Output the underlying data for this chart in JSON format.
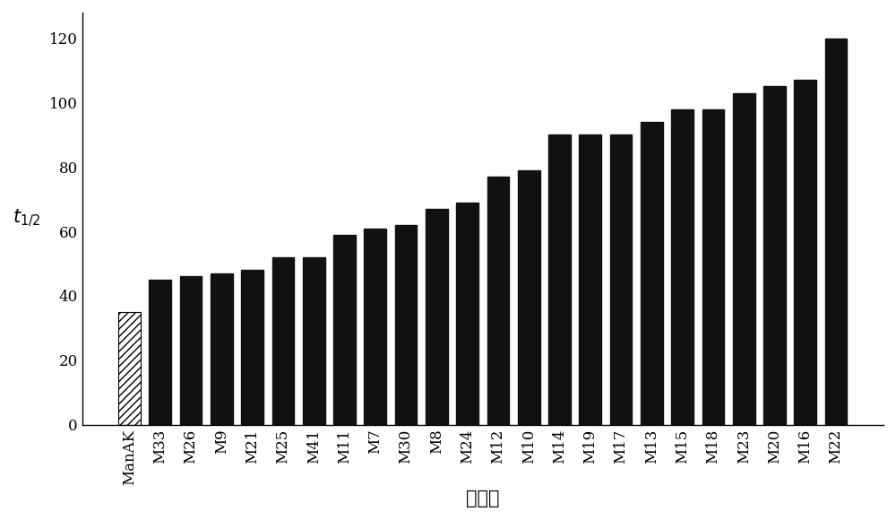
{
  "categories": [
    "ManAK",
    "M33",
    "M26",
    "M9",
    "M21",
    "M25",
    "M41",
    "M11",
    "M7",
    "M30",
    "M8",
    "M24",
    "M12",
    "M10",
    "M14",
    "M19",
    "M17",
    "M13",
    "M15",
    "M18",
    "M23",
    "M20",
    "M16",
    "M22"
  ],
  "values": [
    35,
    45,
    46,
    47,
    48,
    52,
    52,
    59,
    61,
    62,
    67,
    69,
    77,
    79,
    90,
    90,
    90,
    94,
    98,
    98,
    103,
    105,
    107,
    120
  ],
  "bar_color": "#111111",
  "hatch_bar_index": 0,
  "ylabel": "$t_{1/2}$",
  "xlabel": "突变体",
  "ylim": [
    0,
    128
  ],
  "yticks": [
    0,
    20,
    40,
    60,
    80,
    100,
    120
  ],
  "ylabel_fontsize": 15,
  "xlabel_fontsize": 15,
  "tick_fontsize": 12,
  "background_color": "#ffffff"
}
